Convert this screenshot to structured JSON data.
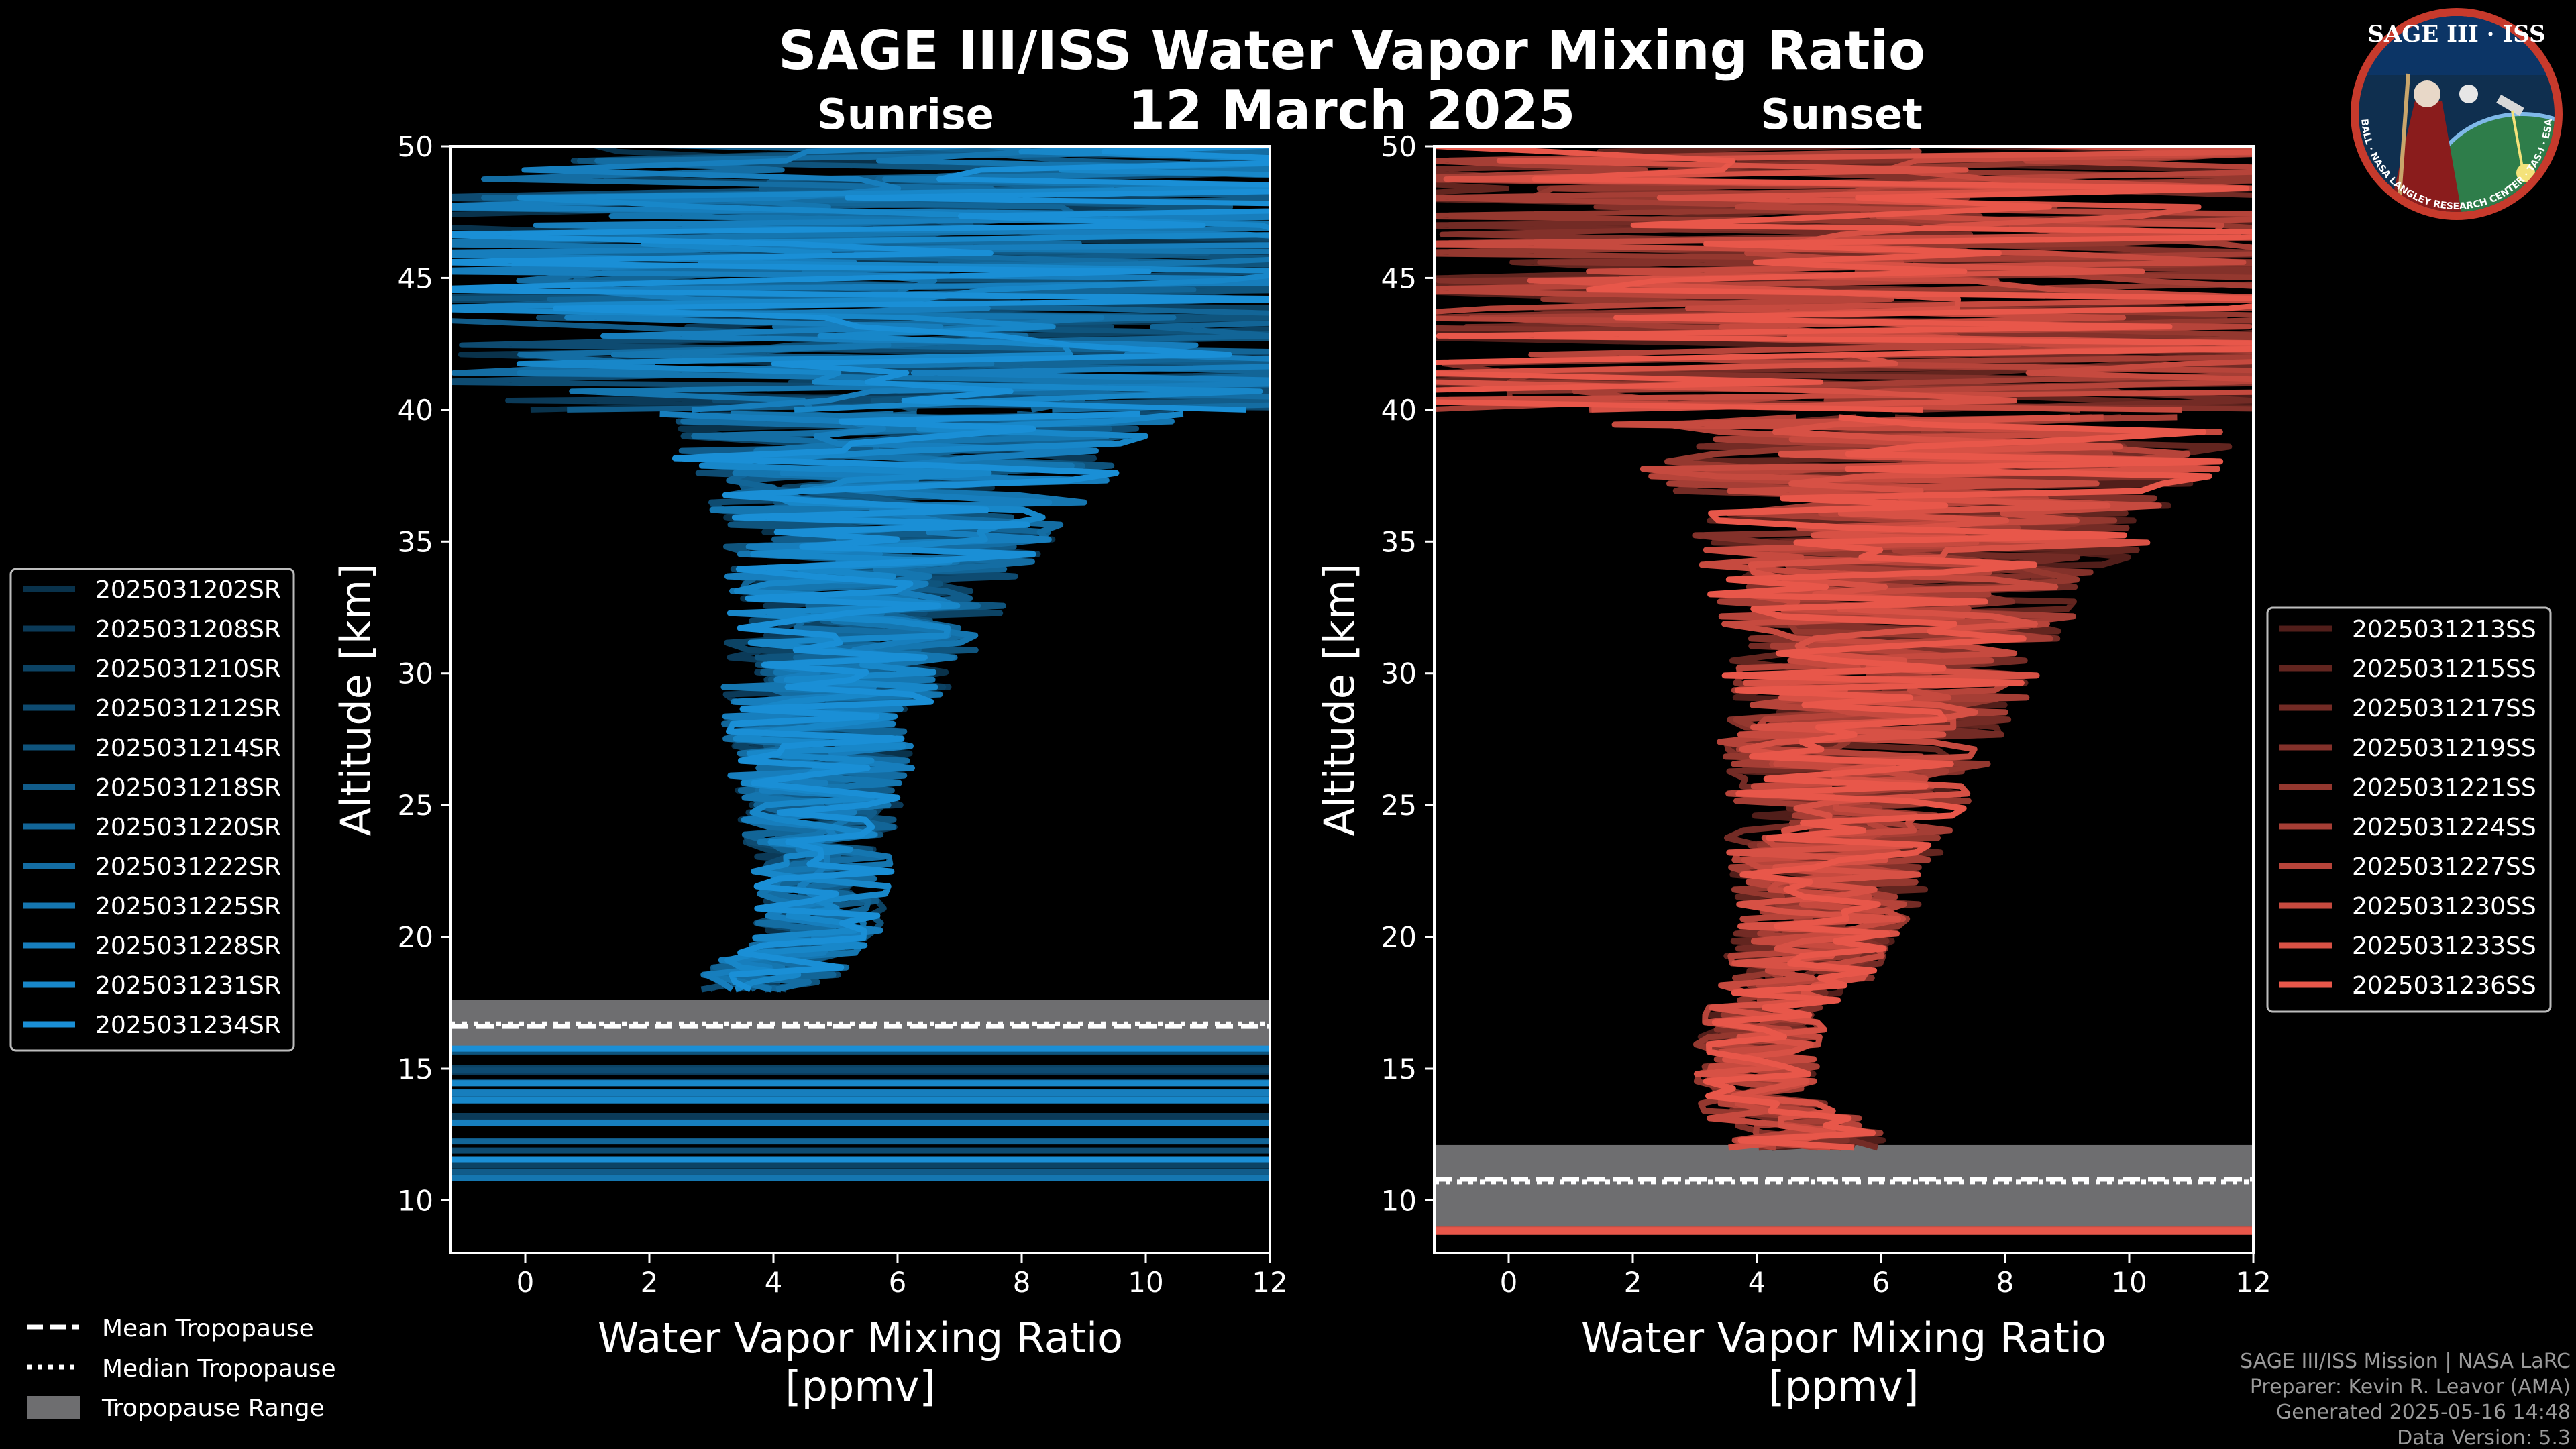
{
  "title": "SAGE III/ISS Water Vapor Mixing Ratio",
  "date": "12 March 2025",
  "logo": {
    "line1": "SAGE III",
    "sep": "·",
    "line2": "ISS",
    "ring_text": "BALL · NASA LANGLEY RESEARCH CENTER · TAS-I · ESA"
  },
  "colors": {
    "sunrise": "#1a8fd6",
    "sunset": "#e8574a",
    "tropo_band": "#6e6e70",
    "axes": "#ffffff"
  },
  "chart_data": [
    {
      "type": "line",
      "panel": "Sunrise",
      "title": "Sunrise",
      "xlabel": "Water Vapor Mixing Ratio\n[ppmv]",
      "xlabel_line1": "Water Vapor Mixing Ratio",
      "xlabel_line2": "[ppmv]",
      "ylabel": "Altitude [km]",
      "xlim": [
        -1.2,
        12
      ],
      "ylim": [
        8,
        50
      ],
      "xticks": [
        "0",
        "2",
        "4",
        "6",
        "8",
        "10",
        "12"
      ],
      "yticks": [
        "10",
        "15",
        "20",
        "25",
        "30",
        "35",
        "40",
        "45",
        "50"
      ],
      "tropopause": {
        "mean_km": 16.6,
        "median_km": 16.7,
        "range_km": [
          15.8,
          17.6
        ]
      },
      "legend": [
        "2025031202SR",
        "2025031208SR",
        "2025031210SR",
        "2025031212SR",
        "2025031214SR",
        "2025031218SR",
        "2025031220SR",
        "2025031222SR",
        "2025031225SR",
        "2025031228SR",
        "2025031231SR",
        "2025031234SR"
      ],
      "profile_envelope": {
        "altitude_km": [
          18,
          20,
          22,
          25,
          28,
          30,
          33,
          36,
          40
        ],
        "center_ppmv": [
          3.6,
          4.7,
          4.8,
          4.7,
          4.8,
          5.1,
          5.6,
          5.9,
          6.2
        ],
        "spread_ppmv": [
          1.2,
          1.0,
          1.1,
          1.4,
          1.6,
          1.9,
          2.3,
          2.9,
          4.5
        ]
      }
    },
    {
      "type": "line",
      "panel": "Sunset",
      "title": "Sunset",
      "xlabel": "Water Vapor Mixing Ratio\n[ppmv]",
      "xlabel_line1": "Water Vapor Mixing Ratio",
      "xlabel_line2": "[ppmv]",
      "ylabel": "Altitude [km]",
      "xlim": [
        -1.2,
        12
      ],
      "ylim": [
        8,
        50
      ],
      "xticks": [
        "0",
        "2",
        "4",
        "6",
        "8",
        "10",
        "12"
      ],
      "yticks": [
        "10",
        "15",
        "20",
        "25",
        "30",
        "35",
        "40",
        "45",
        "50"
      ],
      "tropopause": {
        "mean_km": 10.8,
        "median_km": 10.7,
        "range_km": [
          8.9,
          12.1
        ]
      },
      "legend": [
        "2025031213SS",
        "2025031215SS",
        "2025031217SS",
        "2025031219SS",
        "2025031221SS",
        "2025031224SS",
        "2025031227SS",
        "2025031230SS",
        "2025031233SS",
        "2025031236SS"
      ],
      "profile_envelope": {
        "altitude_km": [
          12,
          14,
          16,
          18,
          20,
          22,
          25,
          28,
          30,
          33,
          36,
          40
        ],
        "center_ppmv": [
          5.0,
          4.0,
          4.0,
          4.5,
          5.0,
          5.2,
          5.4,
          5.8,
          6.0,
          6.4,
          6.8,
          6.8
        ],
        "spread_ppmv": [
          1.5,
          1.0,
          1.0,
          1.2,
          1.4,
          1.6,
          2.0,
          2.4,
          2.6,
          3.2,
          4.0,
          5.5
        ]
      }
    }
  ],
  "tropopause_legend": [
    "Mean Tropopause",
    "Median Tropopause",
    "Tropopause Range"
  ],
  "credits": [
    "SAGE III/ISS Mission | NASA LaRC",
    "Preparer: Kevin R. Leavor (AMA)",
    "Generated 2025-05-16 14:48",
    "Data Version: 5.3"
  ]
}
